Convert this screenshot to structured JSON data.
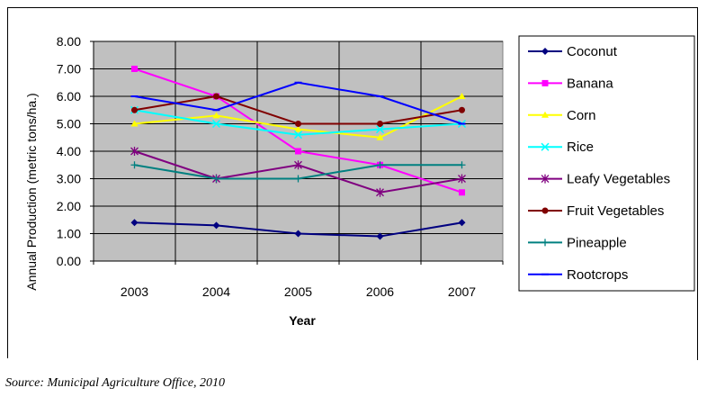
{
  "chart_data": {
    "type": "line",
    "title": "",
    "xlabel": "Year",
    "ylabel": "Annual Production (metric tons/ha.)",
    "categories": [
      "2003",
      "2004",
      "2005",
      "2006",
      "2007"
    ],
    "ylim": [
      0,
      8
    ],
    "yticks": [
      "0.00",
      "1.00",
      "2.00",
      "3.00",
      "4.00",
      "5.00",
      "6.00",
      "7.00",
      "8.00"
    ],
    "grid": "vertical and horizontal",
    "plot_background": "#C0C0C0",
    "legend_position": "right",
    "series": [
      {
        "name": "Coconut",
        "color": "#000080",
        "marker": "diamond",
        "values": [
          1.4,
          1.3,
          1.0,
          0.9,
          1.4
        ]
      },
      {
        "name": "Banana",
        "color": "#FF00FF",
        "marker": "square",
        "values": [
          7.0,
          6.0,
          4.0,
          3.5,
          2.5
        ]
      },
      {
        "name": "Corn",
        "color": "#FFFF00",
        "marker": "triangle",
        "values": [
          5.0,
          5.3,
          4.8,
          4.5,
          6.0
        ]
      },
      {
        "name": "Rice",
        "color": "#00FFFF",
        "marker": "x",
        "values": [
          5.5,
          5.0,
          4.6,
          4.8,
          5.0
        ]
      },
      {
        "name": "Leafy Vegetables",
        "color": "#800080",
        "marker": "star",
        "values": [
          4.0,
          3.0,
          3.5,
          2.5,
          3.0
        ]
      },
      {
        "name": "Fruit Vegetables",
        "color": "#800000",
        "marker": "circle",
        "values": [
          5.5,
          6.0,
          5.0,
          5.0,
          5.5
        ]
      },
      {
        "name": "Pineapple",
        "color": "#008080",
        "marker": "plus",
        "values": [
          3.5,
          3.0,
          3.0,
          3.5,
          3.5
        ]
      },
      {
        "name": "Rootcrops",
        "color": "#0000FF",
        "marker": "dash",
        "values": [
          6.0,
          5.5,
          6.5,
          6.0,
          5.0
        ]
      }
    ]
  },
  "source_note": "Source:  Municipal Agriculture Office, 2010"
}
